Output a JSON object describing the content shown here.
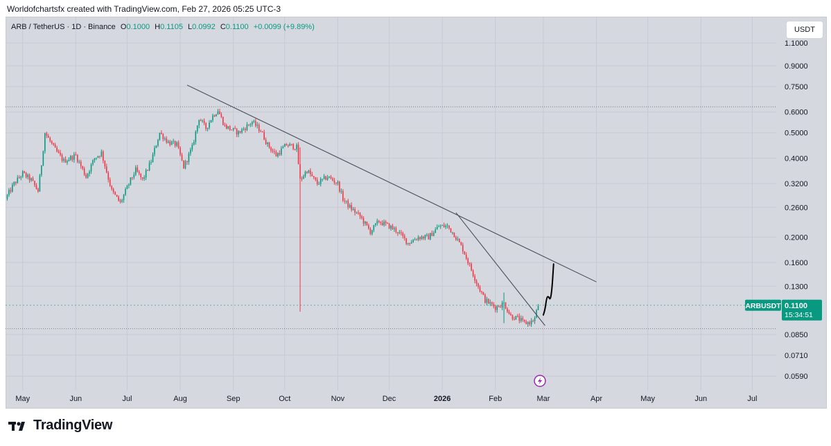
{
  "header": {
    "attribution": "Worldofchartsfx created with TradingView.com, Feb 27, 2026 05:25 UTC-3"
  },
  "legend": {
    "symbol": "ARB / TetherUS · 1D · Binance",
    "open_label": "O",
    "open": "0.1000",
    "high_label": "H",
    "high": "0.1105",
    "low_label": "L",
    "low": "0.0992",
    "close_label": "C",
    "close": "0.1100",
    "change": "+0.0099 (+9.89%)"
  },
  "currency_button": "USDT",
  "last_price": {
    "symbol": "ARBUSDT",
    "price": "0.1100",
    "countdown": "15:34:51"
  },
  "footer": {
    "brand": "TradingView"
  },
  "colors": {
    "up": "#089981",
    "down": "#f23645",
    "background": "#d6d8e0",
    "trendline": "#4a4e5a",
    "projection": "#000000"
  },
  "chart_data": {
    "type": "candlestick",
    "y_scale": "log",
    "ylim": [
      0.052,
      1.32
    ],
    "y_ticks": [
      "1.1000",
      "0.9000",
      "0.7500",
      "0.6000",
      "0.5000",
      "0.4000",
      "0.3200",
      "0.2600",
      "0.2000",
      "0.1600",
      "0.1300",
      "0.0850",
      "0.0710",
      "0.0590"
    ],
    "x_start": "2025-04-21",
    "x_end": "2026-07-15",
    "x_ticks": [
      {
        "label": "May",
        "date": "2025-05-01",
        "bold": false
      },
      {
        "label": "Jun",
        "date": "2025-06-01",
        "bold": false
      },
      {
        "label": "Jul",
        "date": "2025-07-01",
        "bold": false
      },
      {
        "label": "Aug",
        "date": "2025-08-01",
        "bold": false
      },
      {
        "label": "Sep",
        "date": "2025-09-01",
        "bold": false
      },
      {
        "label": "Oct",
        "date": "2025-10-01",
        "bold": false
      },
      {
        "label": "Nov",
        "date": "2025-11-01",
        "bold": false
      },
      {
        "label": "Dec",
        "date": "2025-12-01",
        "bold": false
      },
      {
        "label": "2026",
        "date": "2026-01-01",
        "bold": true
      },
      {
        "label": "Feb",
        "date": "2026-02-01",
        "bold": false
      },
      {
        "label": "Mar",
        "date": "2026-03-01",
        "bold": false
      },
      {
        "label": "Apr",
        "date": "2026-04-01",
        "bold": false
      },
      {
        "label": "May",
        "date": "2026-05-01",
        "bold": false
      },
      {
        "label": "Jun",
        "date": "2026-06-01",
        "bold": false
      },
      {
        "label": "Jul",
        "date": "2026-07-01",
        "bold": false
      }
    ],
    "price_path": [
      [
        "2025-04-21",
        0.28
      ],
      [
        "2025-04-26",
        0.32
      ],
      [
        "2025-05-01",
        0.35
      ],
      [
        "2025-05-06",
        0.33
      ],
      [
        "2025-05-10",
        0.3
      ],
      [
        "2025-05-12",
        0.38
      ],
      [
        "2025-05-14",
        0.5
      ],
      [
        "2025-05-20",
        0.43
      ],
      [
        "2025-05-25",
        0.39
      ],
      [
        "2025-06-01",
        0.41
      ],
      [
        "2025-06-07",
        0.34
      ],
      [
        "2025-06-12",
        0.4
      ],
      [
        "2025-06-16",
        0.42
      ],
      [
        "2025-06-22",
        0.3
      ],
      [
        "2025-06-27",
        0.27
      ],
      [
        "2025-07-03",
        0.33
      ],
      [
        "2025-07-06",
        0.36
      ],
      [
        "2025-07-10",
        0.33
      ],
      [
        "2025-07-15",
        0.39
      ],
      [
        "2025-07-20",
        0.5
      ],
      [
        "2025-07-25",
        0.46
      ],
      [
        "2025-07-30",
        0.45
      ],
      [
        "2025-08-03",
        0.37
      ],
      [
        "2025-08-08",
        0.44
      ],
      [
        "2025-08-12",
        0.57
      ],
      [
        "2025-08-16",
        0.52
      ],
      [
        "2025-08-20",
        0.58
      ],
      [
        "2025-08-23",
        0.61
      ],
      [
        "2025-08-27",
        0.53
      ],
      [
        "2025-09-04",
        0.5
      ],
      [
        "2025-09-12",
        0.55
      ],
      [
        "2025-09-17",
        0.51
      ],
      [
        "2025-09-21",
        0.45
      ],
      [
        "2025-09-26",
        0.41
      ],
      [
        "2025-10-02",
        0.45
      ],
      [
        "2025-10-08",
        0.44
      ],
      [
        "2025-10-10",
        0.33
      ],
      [
        "2025-10-14",
        0.36
      ],
      [
        "2025-10-20",
        0.32
      ],
      [
        "2025-10-26",
        0.34
      ],
      [
        "2025-11-01",
        0.32
      ],
      [
        "2025-11-04",
        0.28
      ],
      [
        "2025-11-08",
        0.26
      ],
      [
        "2025-11-14",
        0.24
      ],
      [
        "2025-11-20",
        0.21
      ],
      [
        "2025-11-25",
        0.23
      ],
      [
        "2025-12-01",
        0.22
      ],
      [
        "2025-12-06",
        0.21
      ],
      [
        "2025-12-12",
        0.19
      ],
      [
        "2025-12-18",
        0.2
      ],
      [
        "2025-12-24",
        0.2
      ],
      [
        "2025-12-30",
        0.22
      ],
      [
        "2026-01-04",
        0.22
      ],
      [
        "2026-01-08",
        0.205
      ],
      [
        "2026-01-13",
        0.18
      ],
      [
        "2026-01-18",
        0.15
      ],
      [
        "2026-01-22",
        0.13
      ],
      [
        "2026-01-26",
        0.115
      ],
      [
        "2026-02-01",
        0.108
      ],
      [
        "2026-02-06",
        0.112
      ],
      [
        "2026-02-10",
        0.1
      ],
      [
        "2026-02-14",
        0.098
      ],
      [
        "2026-02-18",
        0.094
      ],
      [
        "2026-02-22",
        0.095
      ],
      [
        "2026-02-24",
        0.098
      ],
      [
        "2026-02-26",
        0.11
      ]
    ],
    "wicks": [
      {
        "date": "2025-10-10",
        "low": 0.104,
        "high": 0.44
      },
      {
        "date": "2026-02-06",
        "low": 0.094,
        "high": 0.123
      }
    ],
    "horizontal_levels": [
      0.628,
      0.0895
    ],
    "trendlines": [
      {
        "from": [
          "2025-08-05",
          0.76
        ],
        "to": [
          "2026-04-01",
          0.135
        ]
      },
      {
        "from": [
          "2026-01-09",
          0.248
        ],
        "to": [
          "2026-03-02",
          0.092
        ]
      }
    ],
    "projection": [
      [
        "2026-03-01",
        0.101
      ],
      [
        "2026-03-02",
        0.106
      ],
      [
        "2026-03-03",
        0.118
      ],
      [
        "2026-03-04",
        0.119
      ],
      [
        "2026-03-05",
        0.115
      ],
      [
        "2026-03-06",
        0.125
      ],
      [
        "2026-03-07",
        0.158
      ]
    ],
    "event_marker_date": "2026-02-27"
  }
}
